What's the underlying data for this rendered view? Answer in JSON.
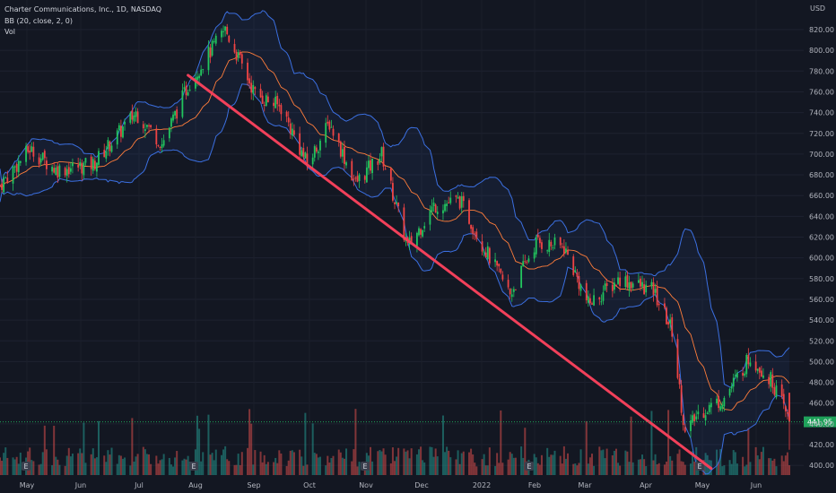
{
  "header": {
    "symbol_line": "Charter Communications, Inc., 1D, NASDAQ",
    "indicator_line": "BB (20, close, 2, 0)",
    "volume_line": "Vol"
  },
  "price_axis": {
    "currency": "USD",
    "ticks": [
      "820.00",
      "800.00",
      "780.00",
      "760.00",
      "740.00",
      "720.00",
      "700.00",
      "680.00",
      "660.00",
      "640.00",
      "620.00",
      "600.00",
      "580.00",
      "560.00",
      "540.00",
      "520.00",
      "500.00",
      "480.00",
      "460.00",
      "440.00",
      "420.00",
      "400.00"
    ],
    "last_price": "441.95"
  },
  "time_axis": {
    "labels": [
      "May",
      "Jun",
      "Jul",
      "Aug",
      "Sep",
      "Oct",
      "Nov",
      "Dec",
      "2022",
      "Feb",
      "Mar",
      "Apr",
      "May",
      "Jun"
    ]
  },
  "colors": {
    "background": "#131722",
    "up": "#26a69a",
    "down": "#ef5350",
    "candle_up": "#22c55e",
    "candle_down": "#ef4444",
    "bb_band": "#3b6fe0",
    "bb_basis": "#ff7d3b",
    "trendline": "#f2405a",
    "last_price": "#1fa15a"
  },
  "chart_data": {
    "type": "candlestick",
    "y_axis_range": [
      395,
      840
    ],
    "x_range": [
      "2021-04-26",
      "2022-06-24"
    ],
    "close_keypoints": [
      {
        "x": "2021-04-26",
        "y": 670
      },
      {
        "x": "2021-05-12",
        "y": 705
      },
      {
        "x": "2021-05-26",
        "y": 685
      },
      {
        "x": "2021-06-15",
        "y": 690
      },
      {
        "x": "2021-07-08",
        "y": 740
      },
      {
        "x": "2021-07-22",
        "y": 710
      },
      {
        "x": "2021-08-06",
        "y": 770
      },
      {
        "x": "2021-08-25",
        "y": 820
      },
      {
        "x": "2021-09-10",
        "y": 758
      },
      {
        "x": "2021-09-24",
        "y": 745
      },
      {
        "x": "2021-10-08",
        "y": 690
      },
      {
        "x": "2021-10-20",
        "y": 730
      },
      {
        "x": "2021-11-03",
        "y": 672
      },
      {
        "x": "2021-11-17",
        "y": 700
      },
      {
        "x": "2021-12-01",
        "y": 610
      },
      {
        "x": "2021-12-15",
        "y": 650
      },
      {
        "x": "2021-12-29",
        "y": 655
      },
      {
        "x": "2022-01-11",
        "y": 610
      },
      {
        "x": "2022-01-25",
        "y": 565
      },
      {
        "x": "2022-02-08",
        "y": 615
      },
      {
        "x": "2022-02-23",
        "y": 610
      },
      {
        "x": "2022-03-08",
        "y": 555
      },
      {
        "x": "2022-03-25",
        "y": 580
      },
      {
        "x": "2022-04-12",
        "y": 568
      },
      {
        "x": "2022-04-22",
        "y": 530
      },
      {
        "x": "2022-04-29",
        "y": 430
      },
      {
        "x": "2022-05-06",
        "y": 450
      },
      {
        "x": "2022-05-20",
        "y": 465
      },
      {
        "x": "2022-06-03",
        "y": 505
      },
      {
        "x": "2022-06-15",
        "y": 480
      },
      {
        "x": "2022-06-24",
        "y": 442
      }
    ],
    "trendline": {
      "start": {
        "x": "2021-08-05",
        "y": 776
      },
      "end": {
        "x": "2022-05-13",
        "y": 397
      }
    },
    "last_price": 441.95
  }
}
